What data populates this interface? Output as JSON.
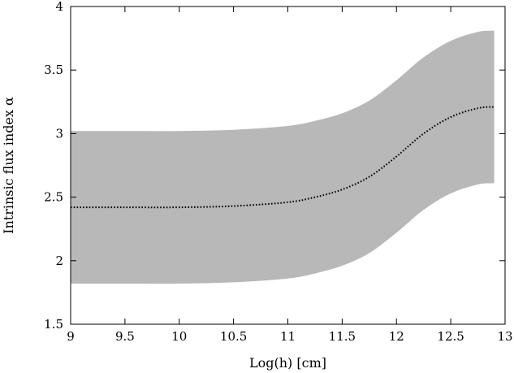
{
  "chart_data": {
    "type": "area",
    "xlabel": "Log(h) [cm]",
    "ylabel": "Intrinsic flux index α",
    "xlim": [
      9,
      13
    ],
    "ylim": [
      1.5,
      4
    ],
    "x_ticks": [
      9,
      9.5,
      10,
      10.5,
      11,
      11.5,
      12,
      12.5,
      13
    ],
    "x_tick_labels": [
      "9",
      "9.5",
      "10",
      "10.5",
      "11",
      "11.5",
      "12",
      "12.5",
      "13"
    ],
    "y_ticks": [
      1.5,
      2,
      2.5,
      3,
      3.5,
      4
    ],
    "y_tick_labels": [
      "1.5",
      "2",
      "2.5",
      "3",
      "3.5",
      "4"
    ],
    "grid": false,
    "legend": "none",
    "series": [
      {
        "style": "dotted",
        "color": "#000000",
        "x": [
          9.0,
          9.5,
          10.0,
          10.5,
          11.0,
          11.25,
          11.5,
          11.75,
          12.0,
          12.25,
          12.5,
          12.75,
          12.9
        ],
        "y": [
          2.42,
          2.42,
          2.42,
          2.43,
          2.46,
          2.5,
          2.56,
          2.66,
          2.82,
          3.0,
          3.13,
          3.2,
          3.21
        ]
      }
    ],
    "band": {
      "color": "#b8b8b8",
      "x": [
        9.0,
        9.5,
        10.0,
        10.5,
        11.0,
        11.25,
        11.5,
        11.75,
        12.0,
        12.25,
        12.5,
        12.75,
        12.9
      ],
      "upper": [
        3.02,
        3.02,
        3.02,
        3.03,
        3.06,
        3.1,
        3.16,
        3.26,
        3.42,
        3.6,
        3.73,
        3.8,
        3.81
      ],
      "lower": [
        1.82,
        1.82,
        1.82,
        1.83,
        1.86,
        1.9,
        1.96,
        2.06,
        2.22,
        2.4,
        2.53,
        2.6,
        2.61
      ]
    }
  }
}
